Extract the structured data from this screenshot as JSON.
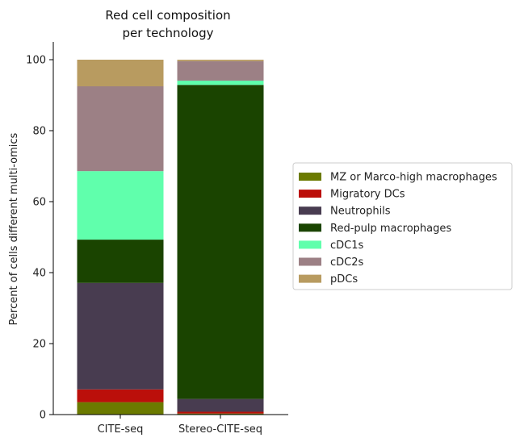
{
  "chart_data": {
    "type": "bar",
    "stacked": true,
    "title_lines": [
      "Red cell composition",
      "per technology"
    ],
    "xlabel": "",
    "ylabel": "Percent of cells different multi-omics",
    "ylim": [
      0,
      105
    ],
    "yticks": [
      0,
      20,
      40,
      60,
      80,
      100
    ],
    "categories": [
      "CITE-seq",
      "Stereo-CITE-seq"
    ],
    "series": [
      {
        "name": "MZ or Marco-high macrophages",
        "color": "#6b7a00",
        "values": [
          3.5,
          0.3
        ]
      },
      {
        "name": "Migratory DCs",
        "color": "#bb0f0a",
        "values": [
          3.6,
          0.5
        ]
      },
      {
        "name": "Neutrophils",
        "color": "#483c50",
        "values": [
          30.0,
          3.6
        ]
      },
      {
        "name": "Red-pulp macrophages",
        "color": "#1a4400",
        "values": [
          12.2,
          88.5
        ]
      },
      {
        "name": "cDC1s",
        "color": "#60ffac",
        "values": [
          19.3,
          1.2
        ]
      },
      {
        "name": "cDC2s",
        "color": "#9c8085",
        "values": [
          23.9,
          5.5
        ]
      },
      {
        "name": "pDCs",
        "color": "#b89b60",
        "values": [
          7.5,
          0.4
        ]
      }
    ],
    "grid": false,
    "legend_position": "right"
  }
}
